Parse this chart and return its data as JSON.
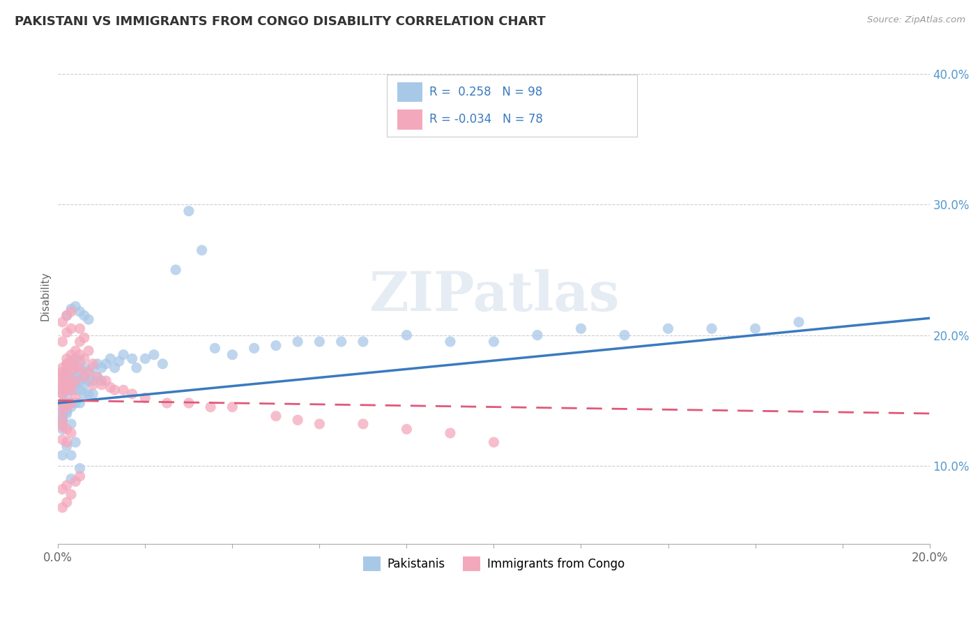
{
  "title": "PAKISTANI VS IMMIGRANTS FROM CONGO DISABILITY CORRELATION CHART",
  "source": "Source: ZipAtlas.com",
  "ylabel": "Disability",
  "xlim": [
    0.0,
    0.2
  ],
  "ylim": [
    0.04,
    0.42
  ],
  "xtick_positions": [
    0.0,
    0.02,
    0.04,
    0.06,
    0.08,
    0.1,
    0.12,
    0.14,
    0.16,
    0.18,
    0.2
  ],
  "xticklabels": [
    "0.0%",
    "",
    "",
    "",
    "",
    "",
    "",
    "",
    "",
    "",
    "20.0%"
  ],
  "ytick_positions": [
    0.1,
    0.2,
    0.3,
    0.4
  ],
  "yticklabels": [
    "10.0%",
    "20.0%",
    "30.0%",
    "40.0%"
  ],
  "blue_R": 0.258,
  "blue_N": 98,
  "pink_R": -0.034,
  "pink_N": 78,
  "blue_color": "#a8c8e8",
  "pink_color": "#f4a8bc",
  "blue_trend_color": "#3a7abf",
  "pink_trend_color": "#e05878",
  "legend_label_blue": "Pakistanis",
  "legend_label_pink": "Immigrants from Congo",
  "watermark": "ZIPatlas",
  "blue_scatter_x": [
    0.001,
    0.001,
    0.001,
    0.001,
    0.001,
    0.001,
    0.001,
    0.001,
    0.002,
    0.002,
    0.002,
    0.002,
    0.002,
    0.002,
    0.002,
    0.002,
    0.003,
    0.003,
    0.003,
    0.003,
    0.003,
    0.003,
    0.003,
    0.004,
    0.004,
    0.004,
    0.004,
    0.004,
    0.004,
    0.005,
    0.005,
    0.005,
    0.005,
    0.005,
    0.006,
    0.006,
    0.006,
    0.006,
    0.007,
    0.007,
    0.007,
    0.008,
    0.008,
    0.008,
    0.009,
    0.009,
    0.01,
    0.01,
    0.011,
    0.012,
    0.013,
    0.014,
    0.015,
    0.017,
    0.018,
    0.02,
    0.022,
    0.024,
    0.027,
    0.03,
    0.033,
    0.036,
    0.04,
    0.045,
    0.05,
    0.055,
    0.06,
    0.065,
    0.07,
    0.08,
    0.09,
    0.1,
    0.11,
    0.12,
    0.13,
    0.14,
    0.15,
    0.16,
    0.17,
    0.002,
    0.003,
    0.004,
    0.005,
    0.006,
    0.007,
    0.001,
    0.002,
    0.003,
    0.002,
    0.001,
    0.001,
    0.001,
    0.002,
    0.003,
    0.004,
    0.005,
    0.003
  ],
  "blue_scatter_y": [
    0.155,
    0.162,
    0.148,
    0.14,
    0.17,
    0.158,
    0.145,
    0.135,
    0.162,
    0.168,
    0.155,
    0.148,
    0.172,
    0.158,
    0.142,
    0.178,
    0.165,
    0.172,
    0.158,
    0.145,
    0.18,
    0.162,
    0.148,
    0.168,
    0.175,
    0.162,
    0.148,
    0.182,
    0.158,
    0.172,
    0.165,
    0.158,
    0.148,
    0.18,
    0.168,
    0.175,
    0.162,
    0.155,
    0.172,
    0.165,
    0.155,
    0.175,
    0.165,
    0.155,
    0.178,
    0.168,
    0.175,
    0.165,
    0.178,
    0.182,
    0.175,
    0.18,
    0.185,
    0.182,
    0.175,
    0.182,
    0.185,
    0.178,
    0.25,
    0.295,
    0.265,
    0.19,
    0.185,
    0.19,
    0.192,
    0.195,
    0.195,
    0.195,
    0.195,
    0.2,
    0.195,
    0.195,
    0.2,
    0.205,
    0.2,
    0.205,
    0.205,
    0.205,
    0.21,
    0.215,
    0.22,
    0.222,
    0.218,
    0.215,
    0.212,
    0.132,
    0.14,
    0.132,
    0.145,
    0.138,
    0.128,
    0.108,
    0.115,
    0.108,
    0.118,
    0.098,
    0.09
  ],
  "pink_scatter_x": [
    0.001,
    0.001,
    0.001,
    0.001,
    0.001,
    0.001,
    0.001,
    0.001,
    0.001,
    0.001,
    0.002,
    0.002,
    0.002,
    0.002,
    0.002,
    0.002,
    0.002,
    0.002,
    0.003,
    0.003,
    0.003,
    0.003,
    0.003,
    0.003,
    0.004,
    0.004,
    0.004,
    0.004,
    0.004,
    0.005,
    0.005,
    0.005,
    0.005,
    0.006,
    0.006,
    0.006,
    0.007,
    0.007,
    0.008,
    0.008,
    0.009,
    0.01,
    0.011,
    0.012,
    0.013,
    0.015,
    0.017,
    0.02,
    0.025,
    0.03,
    0.035,
    0.04,
    0.05,
    0.055,
    0.06,
    0.07,
    0.08,
    0.09,
    0.1,
    0.001,
    0.001,
    0.002,
    0.002,
    0.003,
    0.003,
    0.001,
    0.001,
    0.002,
    0.002,
    0.003,
    0.001,
    0.002,
    0.003,
    0.004,
    0.005,
    0.001,
    0.002
  ],
  "pink_scatter_y": [
    0.158,
    0.165,
    0.148,
    0.172,
    0.155,
    0.162,
    0.142,
    0.175,
    0.168,
    0.135,
    0.168,
    0.175,
    0.158,
    0.148,
    0.182,
    0.162,
    0.145,
    0.178,
    0.172,
    0.178,
    0.162,
    0.148,
    0.185,
    0.158,
    0.175,
    0.182,
    0.165,
    0.152,
    0.188,
    0.205,
    0.195,
    0.185,
    0.175,
    0.198,
    0.182,
    0.168,
    0.188,
    0.172,
    0.178,
    0.162,
    0.168,
    0.162,
    0.165,
    0.16,
    0.158,
    0.158,
    0.155,
    0.152,
    0.148,
    0.148,
    0.145,
    0.145,
    0.138,
    0.135,
    0.132,
    0.132,
    0.128,
    0.125,
    0.118,
    0.21,
    0.195,
    0.215,
    0.202,
    0.218,
    0.205,
    0.13,
    0.12,
    0.128,
    0.118,
    0.125,
    0.082,
    0.085,
    0.078,
    0.088,
    0.092,
    0.068,
    0.072
  ]
}
